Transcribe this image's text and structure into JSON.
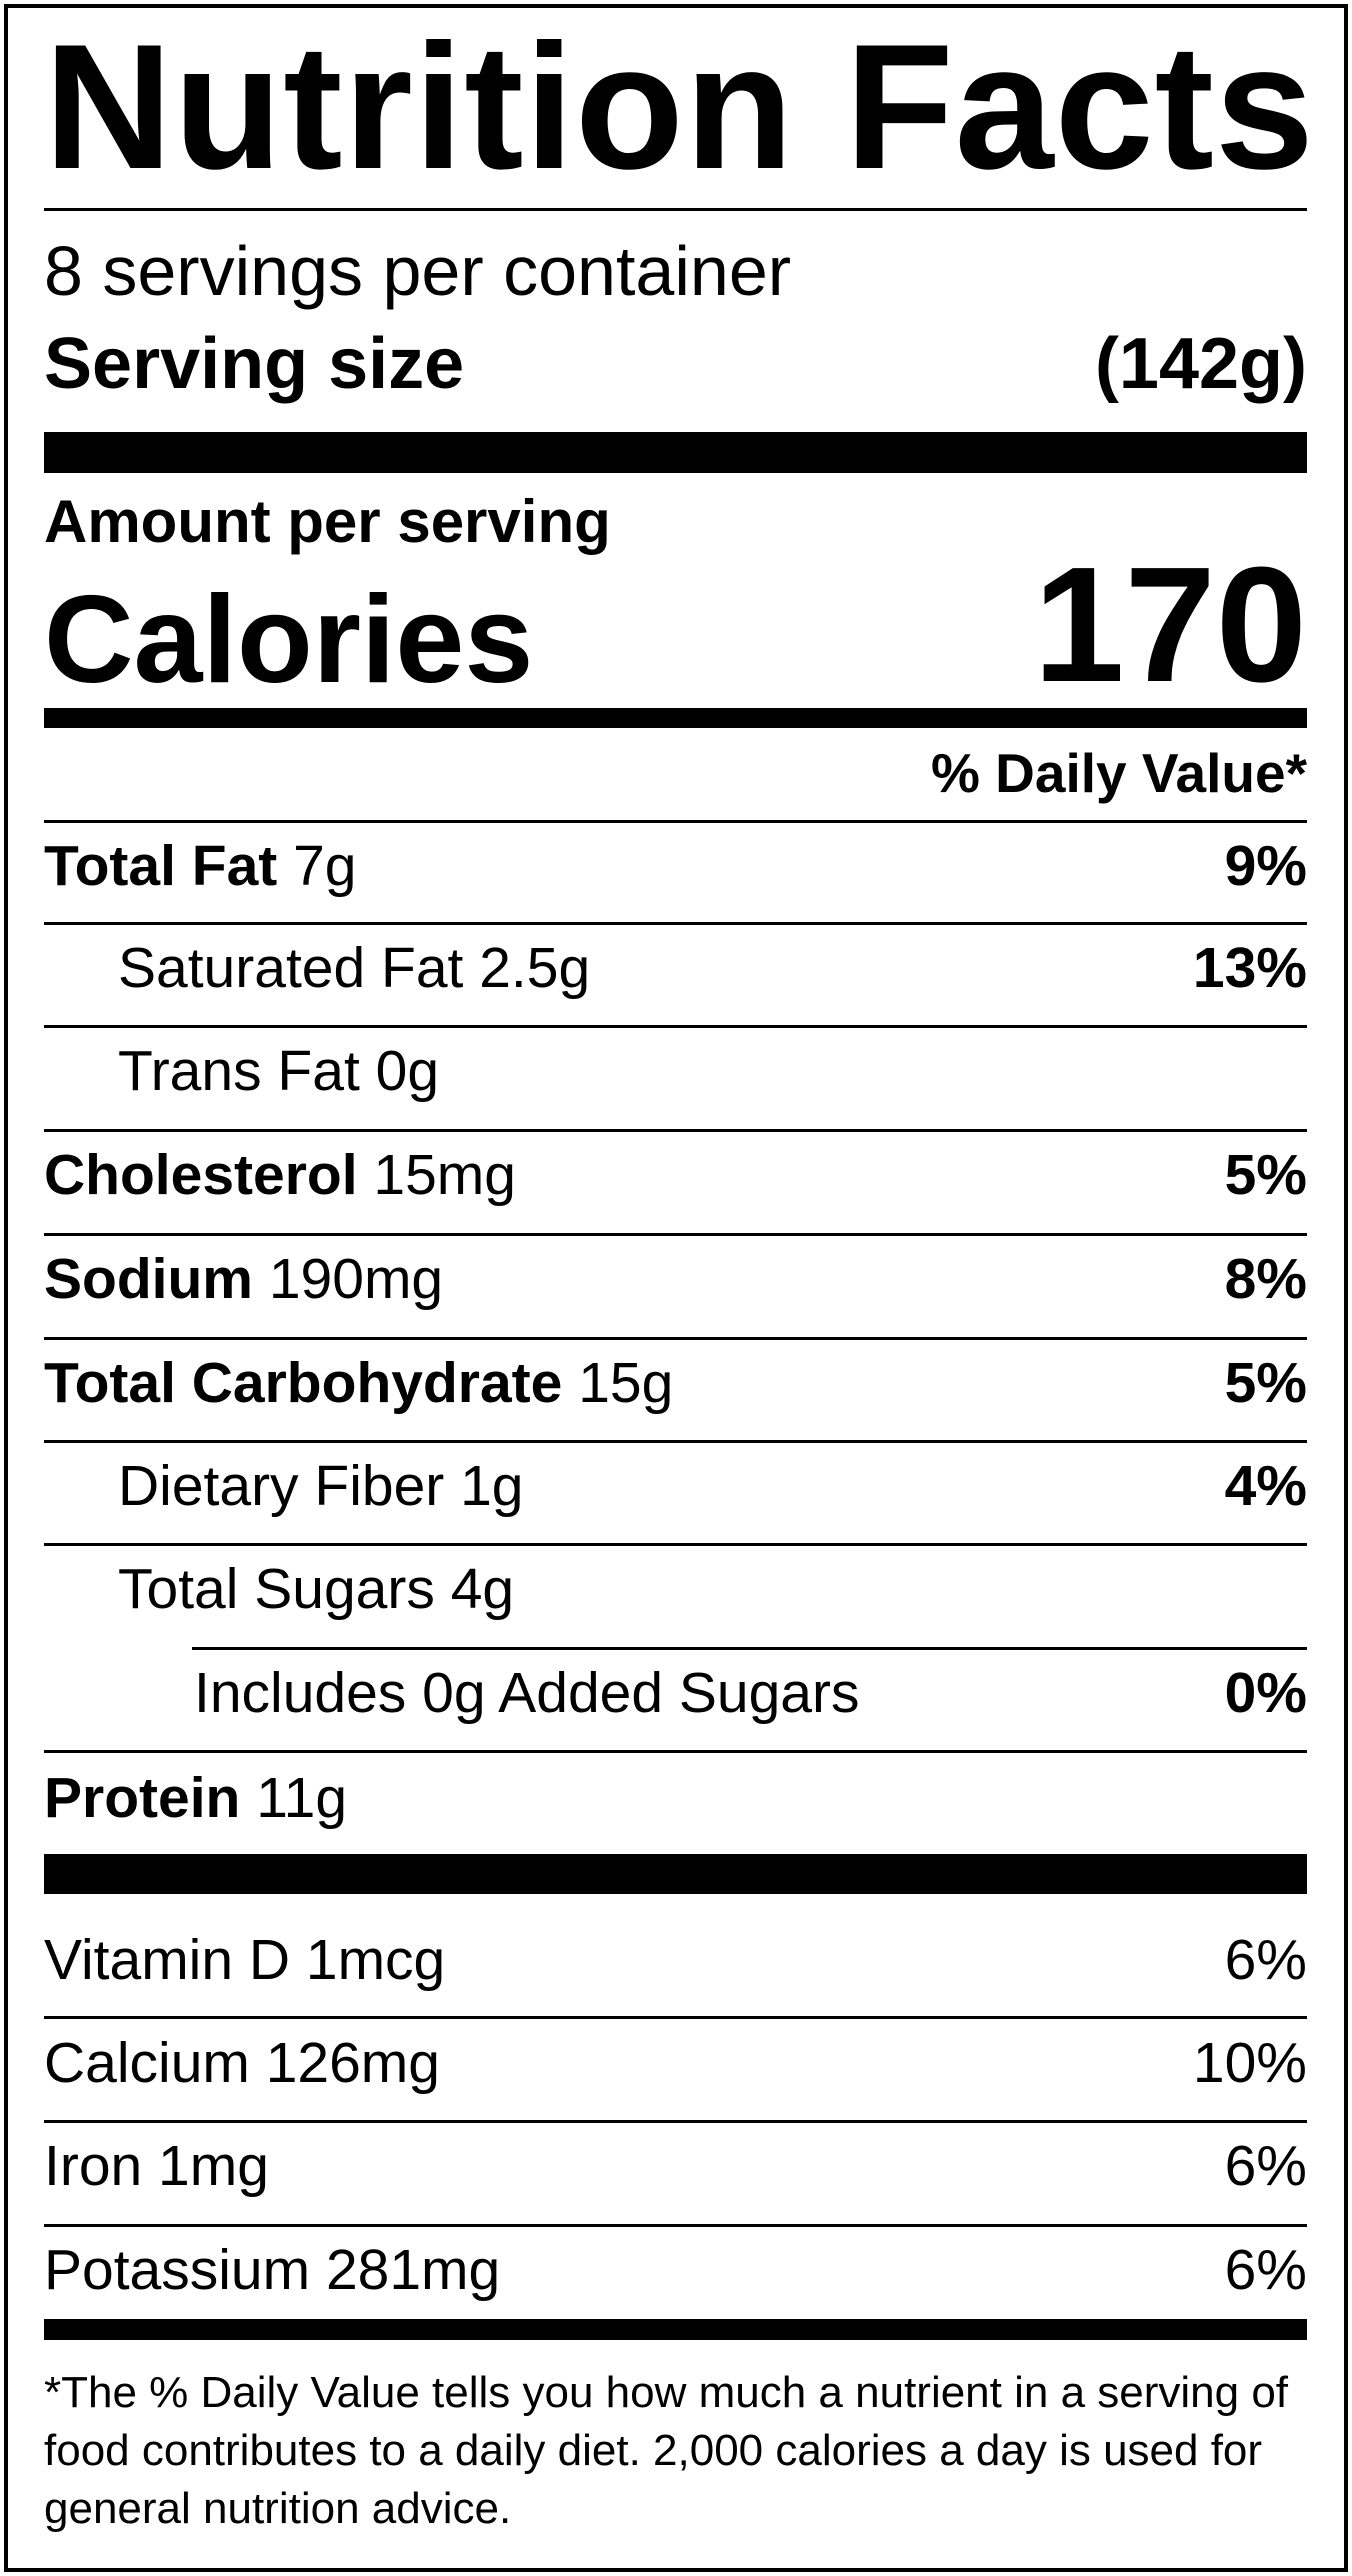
{
  "title": "Nutrition Facts",
  "servings_per_container": "8 servings per container",
  "serving_size_label": "Serving size",
  "serving_size_value": "(142g)",
  "amount_per_serving": "Amount per serving",
  "calories_label": "Calories",
  "calories_value": "170",
  "daily_value_header": "% Daily Value*",
  "nutrients": {
    "total_fat": {
      "name": "Total Fat",
      "amount": "7g",
      "dv": "9%"
    },
    "saturated_fat": {
      "name": "Saturated Fat",
      "amount": "2.5g",
      "dv": "13%"
    },
    "trans_fat": {
      "name": "Trans Fat",
      "amount": "0g"
    },
    "cholesterol": {
      "name": "Cholesterol",
      "amount": "15mg",
      "dv": "5%"
    },
    "sodium": {
      "name": "Sodium",
      "amount": "190mg",
      "dv": "8%"
    },
    "total_carbohydrate": {
      "name": "Total Carbohydrate",
      "amount": "15g",
      "dv": "5%"
    },
    "dietary_fiber": {
      "name": "Dietary Fiber",
      "amount": "1g",
      "dv": "4%"
    },
    "total_sugars": {
      "name": "Total Sugars",
      "amount": "4g"
    },
    "added_sugars": {
      "name": "Includes 0g Added Sugars",
      "dv": "0%"
    },
    "protein": {
      "name": "Protein",
      "amount": "11g"
    }
  },
  "vitamins": {
    "vitamin_d": {
      "label": "Vitamin D 1mcg",
      "dv": "6%"
    },
    "calcium": {
      "label": "Calcium 126mg",
      "dv": "10%"
    },
    "iron": {
      "label": "Iron 1mg",
      "dv": "6%"
    },
    "potassium": {
      "label": "Potassium 281mg",
      "dv": "6%"
    }
  },
  "footnote": "*The % Daily Value tells you how much a nutrient in a serving of food contributes to a daily diet. 2,000 calories a day is used for general nutrition advice."
}
